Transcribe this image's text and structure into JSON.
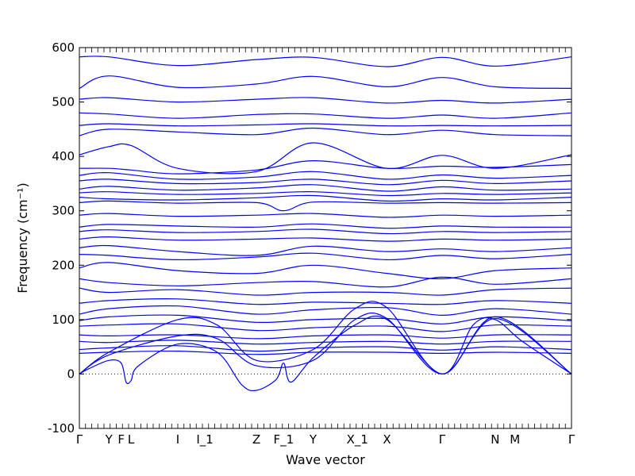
{
  "chart_data": {
    "type": "line",
    "title": "",
    "xlabel": "Wave vector",
    "ylabel": "Frequency (cm⁻¹)",
    "ylim": [
      -100,
      600
    ],
    "yticks": [
      -100,
      0,
      100,
      200,
      300,
      400,
      500,
      600
    ],
    "zero_line": "dotted",
    "line_color": "#0000ff",
    "grid": false,
    "legend": "none",
    "kpoints": [
      {
        "label": "Γ",
        "x": 0
      },
      {
        "label": "Y",
        "x": 0.06
      },
      {
        "label": "F",
        "x": 0.085
      },
      {
        "label": "L",
        "x": 0.105
      },
      {
        "label": "I",
        "x": 0.2
      },
      {
        "label": "I_1",
        "x": 0.255
      },
      {
        "label": "Z",
        "x": 0.36
      },
      {
        "label": "F_1",
        "x": 0.415
      },
      {
        "label": "Y",
        "x": 0.475
      },
      {
        "label": "X_1",
        "x": 0.565
      },
      {
        "label": "X",
        "x": 0.625
      },
      {
        "label": "Γ",
        "x": 0.737
      },
      {
        "label": "N",
        "x": 0.845
      },
      {
        "label": "M",
        "x": 0.885
      },
      {
        "label": "Γ",
        "x": 1.0
      }
    ],
    "series": [
      {
        "x": [
          0,
          0.06,
          0.2,
          0.36,
          0.475,
          0.625,
          0.737,
          0.845,
          1.0
        ],
        "values": [
          583,
          583,
          567,
          578,
          582,
          565,
          582,
          566,
          583
        ]
      },
      {
        "x": [
          0,
          0.06,
          0.2,
          0.36,
          0.475,
          0.625,
          0.737,
          0.845,
          1.0
        ],
        "values": [
          525,
          548,
          527,
          533,
          547,
          528,
          545,
          528,
          525
        ]
      },
      {
        "x": [
          0,
          0.06,
          0.2,
          0.36,
          0.475,
          0.625,
          0.737,
          0.845,
          1.0
        ],
        "values": [
          505,
          508,
          500,
          505,
          508,
          498,
          503,
          498,
          505
        ]
      },
      {
        "x": [
          0,
          0.06,
          0.2,
          0.36,
          0.475,
          0.625,
          0.737,
          0.845,
          1.0
        ],
        "values": [
          480,
          478,
          470,
          477,
          478,
          470,
          476,
          470,
          480
        ]
      },
      {
        "x": [
          0,
          0.06,
          0.2,
          0.36,
          0.475,
          0.625,
          0.737,
          0.845,
          1.0
        ],
        "values": [
          457,
          460,
          456,
          458,
          460,
          456,
          457,
          456,
          457
        ]
      },
      {
        "x": [
          0,
          0.06,
          0.2,
          0.36,
          0.475,
          0.625,
          0.737,
          0.845,
          1.0
        ],
        "values": [
          438,
          450,
          445,
          440,
          452,
          440,
          448,
          440,
          438
        ]
      },
      {
        "x": [
          0,
          0.06,
          0.105,
          0.2,
          0.36,
          0.475,
          0.625,
          0.737,
          0.845,
          1.0
        ],
        "values": [
          403,
          418,
          420,
          378,
          372,
          425,
          378,
          402,
          378,
          403
        ]
      },
      {
        "x": [
          0,
          0.06,
          0.105,
          0.2,
          0.36,
          0.475,
          0.625,
          0.737,
          0.845,
          1.0
        ],
        "values": [
          378,
          378,
          375,
          368,
          375,
          392,
          378,
          382,
          380,
          385
        ]
      },
      {
        "x": [
          0,
          0.06,
          0.2,
          0.36,
          0.475,
          0.625,
          0.737,
          0.845,
          1.0
        ],
        "values": [
          365,
          370,
          358,
          362,
          372,
          358,
          366,
          360,
          365
        ]
      },
      {
        "x": [
          0,
          0.06,
          0.2,
          0.36,
          0.475,
          0.625,
          0.737,
          0.845,
          1.0
        ],
        "values": [
          355,
          358,
          350,
          352,
          358,
          348,
          356,
          350,
          355
        ]
      },
      {
        "x": [
          0,
          0.06,
          0.2,
          0.36,
          0.475,
          0.625,
          0.737,
          0.845,
          1.0
        ],
        "values": [
          340,
          345,
          338,
          342,
          348,
          336,
          344,
          338,
          340
        ]
      },
      {
        "x": [
          0,
          0.06,
          0.2,
          0.36,
          0.475,
          0.625,
          0.737,
          0.845,
          1.0
        ],
        "values": [
          333,
          335,
          330,
          332,
          335,
          328,
          332,
          330,
          333
        ]
      },
      {
        "x": [
          0,
          0.06,
          0.2,
          0.36,
          0.475,
          0.625,
          0.737,
          0.845,
          1.0
        ],
        "values": [
          325,
          322,
          320,
          324,
          328,
          318,
          322,
          320,
          325
        ]
      },
      {
        "x": [
          0,
          0.06,
          0.2,
          0.36,
          0.415,
          0.475,
          0.625,
          0.737,
          0.845,
          1.0
        ],
        "values": [
          315,
          318,
          314,
          315,
          300,
          316,
          314,
          315,
          314,
          315
        ]
      },
      {
        "x": [
          0,
          0.06,
          0.2,
          0.36,
          0.475,
          0.625,
          0.737,
          0.845,
          1.0
        ],
        "values": [
          292,
          295,
          290,
          292,
          295,
          288,
          292,
          290,
          292
        ]
      },
      {
        "x": [
          0,
          0.06,
          0.2,
          0.36,
          0.475,
          0.625,
          0.737,
          0.845,
          1.0
        ],
        "values": [
          270,
          275,
          272,
          270,
          276,
          268,
          272,
          270,
          270
        ]
      },
      {
        "x": [
          0,
          0.06,
          0.2,
          0.36,
          0.475,
          0.625,
          0.737,
          0.845,
          1.0
        ],
        "values": [
          262,
          265,
          260,
          262,
          266,
          258,
          262,
          260,
          262
        ]
      },
      {
        "x": [
          0,
          0.06,
          0.2,
          0.36,
          0.475,
          0.625,
          0.737,
          0.845,
          1.0
        ],
        "values": [
          248,
          252,
          246,
          248,
          250,
          244,
          248,
          246,
          248
        ]
      },
      {
        "x": [
          0,
          0.06,
          0.2,
          0.36,
          0.475,
          0.625,
          0.737,
          0.845,
          1.0
        ],
        "values": [
          232,
          236,
          225,
          218,
          235,
          225,
          230,
          225,
          232
        ]
      },
      {
        "x": [
          0,
          0.06,
          0.2,
          0.36,
          0.475,
          0.625,
          0.737,
          0.845,
          1.0
        ],
        "values": [
          220,
          218,
          210,
          215,
          222,
          210,
          218,
          212,
          220
        ]
      },
      {
        "x": [
          0,
          0.06,
          0.2,
          0.36,
          0.475,
          0.625,
          0.737,
          0.845,
          1.0
        ],
        "values": [
          195,
          205,
          190,
          185,
          200,
          185,
          175,
          190,
          195
        ]
      },
      {
        "x": [
          0,
          0.06,
          0.2,
          0.36,
          0.475,
          0.625,
          0.737,
          0.845,
          1.0
        ],
        "values": [
          175,
          168,
          162,
          168,
          170,
          160,
          178,
          165,
          175
        ]
      },
      {
        "x": [
          0,
          0.06,
          0.2,
          0.36,
          0.475,
          0.625,
          0.737,
          0.845,
          1.0
        ],
        "values": [
          158,
          150,
          155,
          145,
          150,
          150,
          145,
          155,
          158
        ]
      },
      {
        "x": [
          0,
          0.06,
          0.2,
          0.36,
          0.475,
          0.625,
          0.737,
          0.845,
          1.0
        ],
        "values": [
          130,
          135,
          138,
          128,
          132,
          130,
          128,
          135,
          130
        ]
      },
      {
        "x": [
          0,
          0.06,
          0.2,
          0.36,
          0.475,
          0.625,
          0.737,
          0.845,
          1.0
        ],
        "values": [
          110,
          120,
          125,
          110,
          118,
          122,
          108,
          120,
          110
        ]
      },
      {
        "x": [
          0,
          0.06,
          0.2,
          0.36,
          0.475,
          0.625,
          0.737,
          0.845,
          1.0
        ],
        "values": [
          98,
          105,
          108,
          95,
          100,
          102,
          92,
          105,
          98
        ]
      },
      {
        "x": [
          0,
          0.06,
          0.2,
          0.36,
          0.475,
          0.625,
          0.737,
          0.845,
          1.0
        ],
        "values": [
          88,
          90,
          92,
          80,
          85,
          88,
          78,
          90,
          88
        ]
      },
      {
        "x": [
          0,
          0.06,
          0.2,
          0.36,
          0.475,
          0.625,
          0.737,
          0.845,
          1.0
        ],
        "values": [
          72,
          70,
          72,
          65,
          70,
          72,
          66,
          72,
          72
        ]
      },
      {
        "x": [
          0,
          0.06,
          0.2,
          0.36,
          0.475,
          0.625,
          0.737,
          0.845,
          1.0
        ],
        "values": [
          60,
          58,
          62,
          55,
          58,
          60,
          55,
          60,
          60
        ]
      },
      {
        "x": [
          0,
          0.06,
          0.2,
          0.36,
          0.475,
          0.625,
          0.737,
          0.845,
          1.0
        ],
        "values": [
          45,
          48,
          52,
          42,
          48,
          50,
          44,
          50,
          45
        ]
      },
      {
        "x": [
          0,
          0.06,
          0.2,
          0.36,
          0.475,
          0.625,
          0.737,
          0.845,
          1.0
        ],
        "values": [
          38,
          40,
          42,
          36,
          40,
          40,
          38,
          40,
          38
        ]
      },
      {
        "x": [
          0,
          0.02,
          0.06,
          0.085,
          0.095,
          0.105,
          0.12,
          0.2,
          0.28,
          0.33,
          0.36,
          0.4,
          0.415,
          0.43,
          0.475,
          0.56,
          0.625,
          0.737,
          0.8,
          0.845,
          0.9,
          1.0
        ],
        "values": [
          0,
          10,
          25,
          20,
          -15,
          -12,
          15,
          55,
          40,
          -20,
          -30,
          -10,
          20,
          -15,
          30,
          90,
          100,
          0,
          90,
          100,
          60,
          0
        ]
      },
      {
        "x": [
          0,
          0.06,
          0.2,
          0.28,
          0.36,
          0.475,
          0.56,
          0.625,
          0.737,
          0.845,
          1.0
        ],
        "values": [
          0,
          35,
          70,
          65,
          15,
          25,
          100,
          102,
          0,
          102,
          0
        ]
      },
      {
        "x": [
          0,
          0.06,
          0.2,
          0.28,
          0.36,
          0.475,
          0.56,
          0.625,
          0.737,
          0.845,
          1.0
        ],
        "values": [
          0,
          40,
          100,
          90,
          25,
          45,
          120,
          122,
          0,
          105,
          0
        ]
      }
    ]
  }
}
